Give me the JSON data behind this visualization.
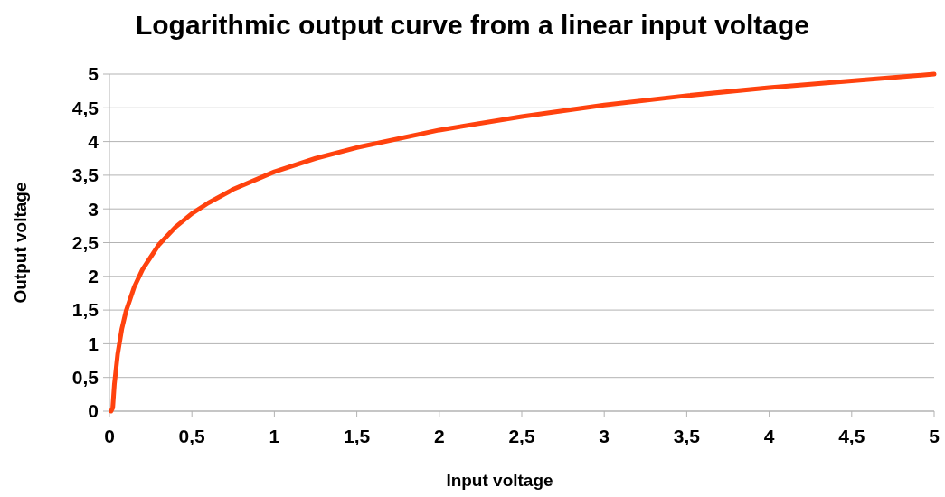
{
  "chart_data": {
    "type": "line",
    "title": "Logarithmic output curve from a linear input voltage",
    "xlabel": "Input voltage",
    "ylabel": "Output voltage",
    "series": [
      {
        "color": "#ff420e",
        "x": [
          0.01,
          0.02,
          0.03,
          0.05,
          0.075,
          0.1,
          0.15,
          0.2,
          0.3,
          0.4,
          0.5,
          0.6,
          0.75,
          1,
          1.25,
          1.5,
          2,
          2.5,
          3,
          3.5,
          4,
          4.5,
          5
        ],
        "values": [
          0,
          0.05,
          0.4,
          0.85,
          1.22,
          1.48,
          1.84,
          2.1,
          2.47,
          2.73,
          2.93,
          3.09,
          3.29,
          3.55,
          3.75,
          3.91,
          4.17,
          4.37,
          4.54,
          4.68,
          4.8,
          4.9,
          5
        ]
      }
    ],
    "xlim": [
      0,
      5
    ],
    "ylim": [
      0,
      5
    ],
    "xticks": [
      0,
      {
        "value": 0.5,
        "label": "0,5"
      },
      1,
      {
        "value": 1.5,
        "label": "1,5"
      },
      2,
      {
        "value": 2.5,
        "label": "2,5"
      },
      3,
      {
        "value": 3.5,
        "label": "3,5"
      },
      4,
      {
        "value": 4.5,
        "label": "4,5"
      },
      5
    ],
    "yticks": [
      0,
      {
        "value": 0.5,
        "label": "0,5"
      },
      1,
      {
        "value": 1.5,
        "label": "1,5"
      },
      2,
      {
        "value": 2.5,
        "label": "2,5"
      },
      3,
      {
        "value": 3.5,
        "label": "3,5"
      },
      4,
      {
        "value": 4.5,
        "label": "4,5"
      },
      5
    ],
    "grid": "y",
    "marker": "none",
    "line_style": "solid"
  }
}
